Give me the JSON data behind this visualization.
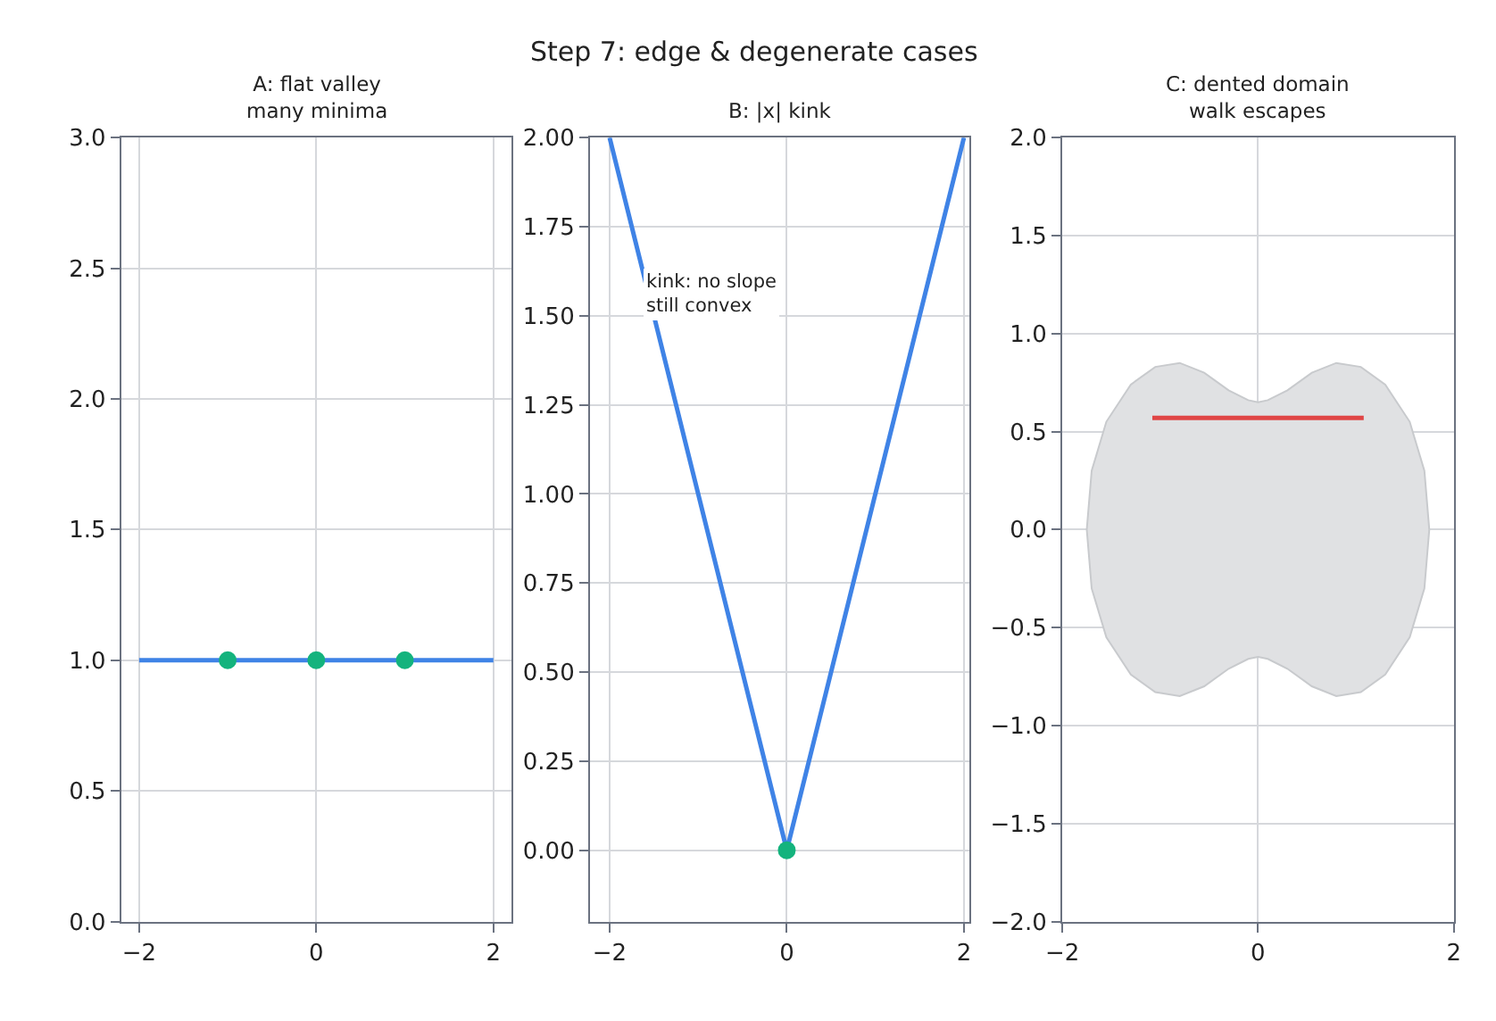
{
  "chart_data": [
    {
      "type": "line",
      "subtitle": "A: flat valley\nmany minima",
      "xlim": [
        -2.2,
        2.2
      ],
      "ylim": [
        0,
        3
      ],
      "xticks": [
        -2,
        0,
        2
      ],
      "yticks": [
        {
          "value": 0,
          "label": "0.0"
        },
        0.5,
        {
          "value": 1,
          "label": "1.0"
        },
        1.5,
        {
          "value": 2,
          "label": "2.0"
        },
        2.5,
        {
          "value": 3,
          "label": "3.0"
        }
      ],
      "grid": true,
      "series": [
        {
          "type": "line",
          "color": "#3f83e6",
          "x": [
            -2,
            2
          ],
          "values": [
            1,
            1
          ]
        },
        {
          "type": "scatter",
          "color": "#14b37d",
          "x": [
            -1,
            0,
            1
          ],
          "values": [
            1,
            1,
            1
          ]
        }
      ]
    },
    {
      "type": "line",
      "title": "Step 7: edge & degenerate cases",
      "subtitle": "B: |x| kink",
      "xlim": [
        -2.22,
        2.06
      ],
      "ylim": [
        -0.2,
        2.0
      ],
      "xticks": [
        -2,
        0,
        2
      ],
      "yticks": [
        {
          "value": 0,
          "label": "0.00"
        },
        {
          "value": 0.25,
          "label": "0.25"
        },
        {
          "value": 0.5,
          "label": "0.50"
        },
        {
          "value": 0.75,
          "label": "0.75"
        },
        {
          "value": 1,
          "label": "1.00"
        },
        {
          "value": 1.25,
          "label": "1.25"
        },
        {
          "value": 1.5,
          "label": "1.50"
        },
        {
          "value": 1.75,
          "label": "1.75"
        },
        {
          "value": 2,
          "label": "2.00"
        }
      ],
      "grid": true,
      "annotations": [
        "kink: no slope\nstill convex"
      ],
      "series": [
        {
          "type": "line",
          "color": "#3f83e6",
          "x": [
            -2,
            0,
            2
          ],
          "values": [
            2,
            0,
            2
          ]
        },
        {
          "type": "scatter",
          "color": "#14b37d",
          "x": [
            0
          ],
          "values": [
            0
          ]
        }
      ]
    },
    {
      "type": "line",
      "subtitle": "C: dented domain\nwalk escapes",
      "xlim": [
        -2,
        2
      ],
      "ylim": [
        -2,
        2
      ],
      "xticks": [
        -2,
        0,
        2
      ],
      "yticks": [
        {
          "value": -2,
          "label": "−2.0"
        },
        -1.5,
        {
          "value": -1,
          "label": "−1.0"
        },
        -0.5,
        {
          "value": 0,
          "label": "0.0"
        },
        0.5,
        {
          "value": 1,
          "label": "1.0"
        },
        1.5,
        {
          "value": 2,
          "label": "2.0"
        }
      ],
      "grid": true,
      "series": [
        {
          "type": "area",
          "color": "#e0e1e3",
          "x": [
            1.75,
            1.7,
            1.55,
            1.3,
            1.05,
            0.8,
            0.55,
            0.3,
            0.1,
            0,
            -0.1,
            -0.3,
            -0.55,
            -0.8,
            -1.05,
            -1.3,
            -1.55,
            -1.7,
            -1.75,
            -1.7,
            -1.55,
            -1.3,
            -1.05,
            -0.8,
            -0.55,
            -0.3,
            -0.1,
            0,
            0.1,
            0.3,
            0.55,
            0.8,
            1.05,
            1.3,
            1.55,
            1.7,
            1.75
          ],
          "values": [
            0,
            0.3,
            0.55,
            0.74,
            0.83,
            0.85,
            0.8,
            0.71,
            0.66,
            0.65,
            0.66,
            0.71,
            0.8,
            0.85,
            0.83,
            0.74,
            0.55,
            0.3,
            0,
            -0.3,
            -0.55,
            -0.74,
            -0.83,
            -0.85,
            -0.8,
            -0.71,
            -0.66,
            -0.65,
            -0.66,
            -0.71,
            -0.8,
            -0.85,
            -0.83,
            -0.74,
            -0.55,
            -0.3,
            0
          ]
        },
        {
          "type": "line",
          "color": "#e04545",
          "x": [
            -1.08,
            1.08
          ],
          "values": [
            0.57,
            0.57
          ]
        }
      ]
    }
  ]
}
